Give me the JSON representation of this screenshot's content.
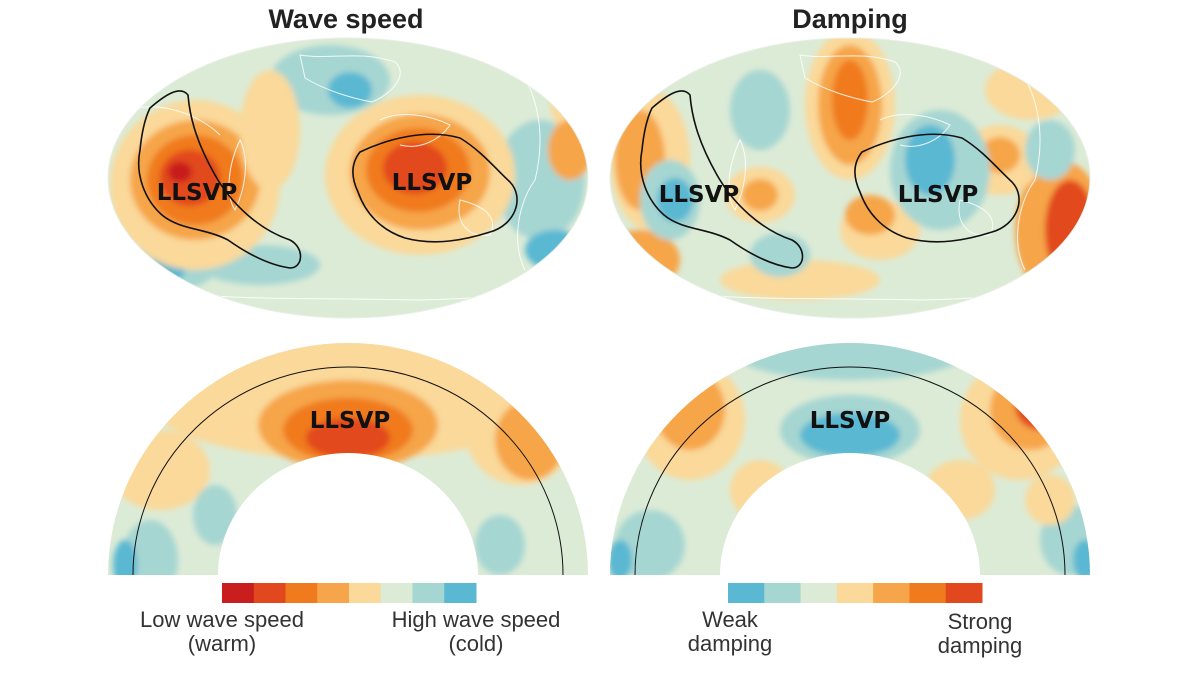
{
  "panels": {
    "left_title": "Wave speed",
    "right_title": "Damping"
  },
  "region_label": "LLSVP",
  "legend_left": {
    "low_line1": "Low wave speed",
    "low_line2": "(warm)",
    "high_line1": "High wave speed",
    "high_line2": "(cold)",
    "colors": [
      "#c81e1e",
      "#e2481e",
      "#f07a1e",
      "#f6a54a",
      "#fad99a",
      "#dcebd6",
      "#a6d6d2",
      "#5ab8d2"
    ]
  },
  "legend_right": {
    "weak_line1": "Weak",
    "weak_line2": "damping",
    "strong_line1": "Strong",
    "strong_line2": "damping",
    "colors": [
      "#5ab8d2",
      "#a6d6d2",
      "#dcebd6",
      "#fad99a",
      "#f6a54a",
      "#f07a1e",
      "#e2481e"
    ]
  }
}
